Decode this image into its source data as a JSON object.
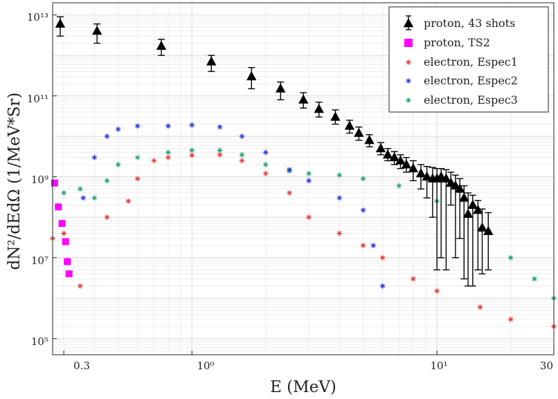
{
  "chart_data": {
    "type": "scatter",
    "title": "",
    "xlabel": "E (MeV)",
    "ylabel": "dN²/dEdΩ (1/MeV*Sr)",
    "xscale": "log",
    "yscale": "log",
    "xlim": [
      0.27,
      30
    ],
    "ylim": [
      40000,
      20000000000000
    ],
    "grid": true,
    "legend_position": "top-right",
    "x_tick_labels": [
      "0.3",
      "10⁰",
      "10¹",
      "30"
    ],
    "y_tick_labels": [
      "10¹³",
      "10¹¹",
      "10⁹",
      "10⁷",
      "10⁵"
    ],
    "series": [
      {
        "name": "proton, 43 shots",
        "marker": "triangle",
        "color": "#000000",
        "points": [
          {
            "x": 0.29,
            "y": 6000000000000.0,
            "lo": 3000000000000.0,
            "hi": 9000000000000.0
          },
          {
            "x": 0.41,
            "y": 4000000000000.0,
            "lo": 2000000000000.0,
            "hi": 6000000000000.0
          },
          {
            "x": 0.75,
            "y": 1700000000000.0,
            "lo": 1000000000000.0,
            "hi": 2500000000000.0
          },
          {
            "x": 1.2,
            "y": 700000000000.0,
            "lo": 400000000000.0,
            "hi": 1000000000000.0
          },
          {
            "x": 1.75,
            "y": 300000000000.0,
            "lo": 150000000000.0,
            "hi": 500000000000.0
          },
          {
            "x": 2.3,
            "y": 150000000000.0,
            "lo": 80000000000.0,
            "hi": 220000000000.0
          },
          {
            "x": 2.85,
            "y": 80000000000.0,
            "lo": 50000000000.0,
            "hi": 120000000000.0
          },
          {
            "x": 3.3,
            "y": 47000000000.0,
            "lo": 30000000000.0,
            "hi": 70000000000.0
          },
          {
            "x": 3.85,
            "y": 30000000000.0,
            "lo": 20000000000.0,
            "hi": 45000000000.0
          },
          {
            "x": 4.4,
            "y": 18000000000.0,
            "lo": 12000000000.0,
            "hi": 25000000000.0
          },
          {
            "x": 4.8,
            "y": 12000000000.0,
            "lo": 8000000000.0,
            "hi": 17000000000.0
          },
          {
            "x": 5.3,
            "y": 8000000000.0,
            "lo": 5500000000.0,
            "hi": 11000000000.0
          },
          {
            "x": 5.9,
            "y": 5000000000.0,
            "lo": 3500000000.0,
            "hi": 7000000000.0
          },
          {
            "x": 6.3,
            "y": 3500000000.0,
            "lo": 2500000000.0,
            "hi": 5000000000.0
          },
          {
            "x": 6.7,
            "y": 3000000000.0,
            "lo": 2000000000.0,
            "hi": 4200000000.0
          },
          {
            "x": 7.1,
            "y": 2500000000.0,
            "lo": 1600000000.0,
            "hi": 3500000000.0
          },
          {
            "x": 7.5,
            "y": 2000000000.0,
            "lo": 1300000000.0,
            "hi": 3000000000.0
          },
          {
            "x": 8.0,
            "y": 1600000000.0,
            "lo": 800000000.0,
            "hi": 2500000000.0
          },
          {
            "x": 8.6,
            "y": 1200000000.0,
            "lo": 500000000.0,
            "hi": 2000000000.0
          },
          {
            "x": 9.1,
            "y": 1000000000.0,
            "lo": 300000000.0,
            "hi": 1800000000.0
          },
          {
            "x": 9.6,
            "y": 900000000.0,
            "lo": 100000000.0,
            "hi": 1700000000.0
          },
          {
            "x": 10.0,
            "y": 900000000.0,
            "lo": 5000000.0,
            "hi": 1600000000.0
          },
          {
            "x": 10.4,
            "y": 1000000000.0,
            "lo": 10000000.0,
            "hi": 1600000000.0
          },
          {
            "x": 10.9,
            "y": 900000000.0,
            "lo": 5000000.0,
            "hi": 1500000000.0
          },
          {
            "x": 11.4,
            "y": 700000000.0,
            "lo": 200000000.0,
            "hi": 1300000000.0
          },
          {
            "x": 11.9,
            "y": 600000000.0,
            "lo": 10000000.0,
            "hi": 1100000000.0
          },
          {
            "x": 12.4,
            "y": 500000000.0,
            "lo": 30000000.0,
            "hi": 900000000.0
          },
          {
            "x": 12.9,
            "y": 300000000.0,
            "lo": 3000000.0,
            "hi": 600000000.0
          },
          {
            "x": 13.4,
            "y": 120000000.0,
            "lo": 2000000.0,
            "hi": 400000000.0
          },
          {
            "x": 14.0,
            "y": 200000000.0,
            "lo": 2000000.0,
            "hi": 350000000.0
          },
          {
            "x": 14.7,
            "y": 150000000.0,
            "lo": 5000000.0,
            "hi": 260000000.0
          },
          {
            "x": 15.3,
            "y": 55000000.0,
            "lo": 4000000.0,
            "hi": 160000000.0
          },
          {
            "x": 16.2,
            "y": 45000000.0,
            "lo": 5000000.0,
            "hi": 130000000.0
          }
        ]
      },
      {
        "name": "proton, TS2",
        "marker": "square",
        "color": "#ff00ff",
        "points": [
          {
            "x": 0.275,
            "y": 700000000.0
          },
          {
            "x": 0.285,
            "y": 180000000.0
          },
          {
            "x": 0.295,
            "y": 70000000.0
          },
          {
            "x": 0.305,
            "y": 25000000.0
          },
          {
            "x": 0.31,
            "y": 8000000.0
          },
          {
            "x": 0.315,
            "y": 4000000.0
          }
        ]
      },
      {
        "name": "electron, Espec1",
        "marker": "asterisk",
        "color": "#e03030",
        "points": [
          {
            "x": 0.27,
            "y": 30000000.0
          },
          {
            "x": 0.3,
            "y": 40000000.0
          },
          {
            "x": 0.35,
            "y": 2000000.0
          },
          {
            "x": 0.45,
            "y": 100000000.0
          },
          {
            "x": 0.55,
            "y": 250000000.0
          },
          {
            "x": 0.6,
            "y": 900000000.0
          },
          {
            "x": 0.7,
            "y": 2500000000.0
          },
          {
            "x": 0.8,
            "y": 3000000000.0
          },
          {
            "x": 1.0,
            "y": 3400000000.0
          },
          {
            "x": 1.3,
            "y": 3500000000.0
          },
          {
            "x": 1.6,
            "y": 2500000000.0
          },
          {
            "x": 2.0,
            "y": 1200000000.0
          },
          {
            "x": 2.5,
            "y": 400000000.0
          },
          {
            "x": 3.0,
            "y": 100000000.0
          },
          {
            "x": 4.0,
            "y": 40000000.0
          },
          {
            "x": 5.0,
            "y": 20000000.0
          },
          {
            "x": 6.0,
            "y": 10000000.0
          },
          {
            "x": 8.0,
            "y": 3000000.0
          },
          {
            "x": 10.0,
            "y": 1500000.0
          },
          {
            "x": 15.0,
            "y": 600000.0
          },
          {
            "x": 20.0,
            "y": 300000.0
          },
          {
            "x": 30.0,
            "y": 200000.0
          }
        ]
      },
      {
        "name": "electron, Espec2",
        "marker": "asterisk",
        "color": "#2030d0",
        "points": [
          {
            "x": 0.36,
            "y": 300000000.0
          },
          {
            "x": 0.4,
            "y": 3000000000.0
          },
          {
            "x": 0.45,
            "y": 10000000000.0
          },
          {
            "x": 0.5,
            "y": 15000000000.0
          },
          {
            "x": 0.6,
            "y": 18000000000.0
          },
          {
            "x": 0.8,
            "y": 18000000000.0
          },
          {
            "x": 1.0,
            "y": 19000000000.0
          },
          {
            "x": 1.3,
            "y": 17000000000.0
          },
          {
            "x": 1.6,
            "y": 10000000000.0
          },
          {
            "x": 2.0,
            "y": 4000000000.0
          },
          {
            "x": 2.5,
            "y": 1500000000.0
          },
          {
            "x": 3.0,
            "y": 800000000.0
          },
          {
            "x": 4.0,
            "y": 300000000.0
          },
          {
            "x": 5.0,
            "y": 150000000.0
          },
          {
            "x": 5.5,
            "y": 20000000.0
          },
          {
            "x": 6.0,
            "y": 2000000.0
          }
        ]
      },
      {
        "name": "electron, Espec3",
        "marker": "asterisk",
        "color": "#1a9970",
        "points": [
          {
            "x": 0.3,
            "y": 400000000.0
          },
          {
            "x": 0.35,
            "y": 500000000.0
          },
          {
            "x": 0.4,
            "y": 300000000.0
          },
          {
            "x": 0.45,
            "y": 800000000.0
          },
          {
            "x": 0.5,
            "y": 2000000000.0
          },
          {
            "x": 0.6,
            "y": 3000000000.0
          },
          {
            "x": 0.8,
            "y": 4000000000.0
          },
          {
            "x": 1.0,
            "y": 4500000000.0
          },
          {
            "x": 1.3,
            "y": 4500000000.0
          },
          {
            "x": 1.6,
            "y": 3500000000.0
          },
          {
            "x": 2.0,
            "y": 2000000000.0
          },
          {
            "x": 2.5,
            "y": 1400000000.0
          },
          {
            "x": 3.0,
            "y": 1200000000.0
          },
          {
            "x": 4.0,
            "y": 1100000000.0
          },
          {
            "x": 5.0,
            "y": 900000000.0
          },
          {
            "x": 7.0,
            "y": 600000000.0
          },
          {
            "x": 10.0,
            "y": 250000000.0
          },
          {
            "x": 15.0,
            "y": 50000000.0
          },
          {
            "x": 20.0,
            "y": 10000000.0
          },
          {
            "x": 25.0,
            "y": 3000000.0
          },
          {
            "x": 30.0,
            "y": 1000000.0
          }
        ]
      }
    ]
  }
}
